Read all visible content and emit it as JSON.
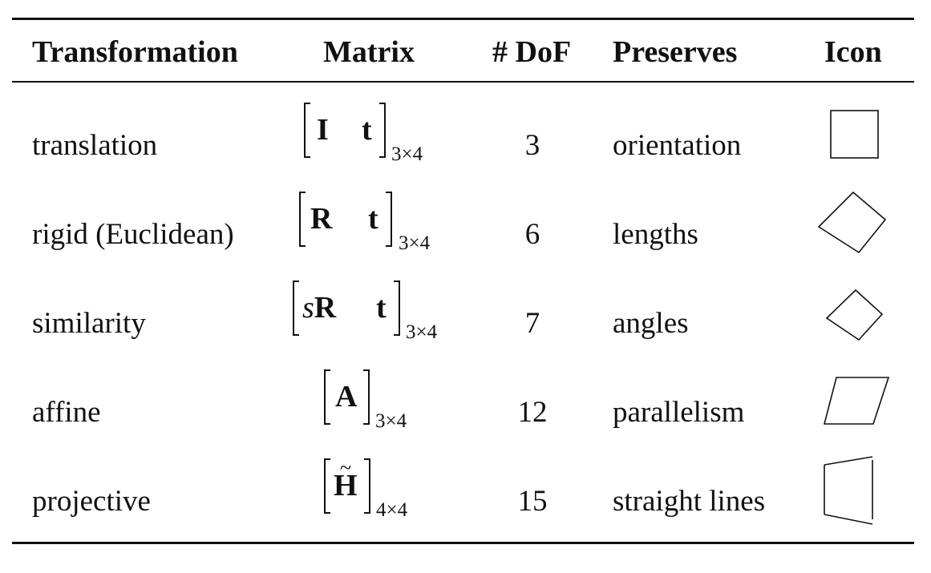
{
  "table": {
    "headers": {
      "transformation": "Transformation",
      "matrix": "Matrix",
      "dof": "# DoF",
      "preserves": "Preserves",
      "icon": "Icon"
    },
    "rows": [
      {
        "name": "translation",
        "matrix_entries": [
          "I",
          "t"
        ],
        "matrix_size": "3×4",
        "dof": "3",
        "preserves": "orientation",
        "icon": "square-icon"
      },
      {
        "name": "rigid (Euclidean)",
        "matrix_entries": [
          "R",
          "t"
        ],
        "matrix_size": "3×4",
        "dof": "6",
        "preserves": "lengths",
        "icon": "rotated-square-icon"
      },
      {
        "name": "similarity",
        "matrix_scale": "s",
        "matrix_entries": [
          "R",
          "t"
        ],
        "matrix_size": "3×4",
        "dof": "7",
        "preserves": "angles",
        "icon": "small-rotated-square-icon"
      },
      {
        "name": "affine",
        "matrix_entries": [
          "A"
        ],
        "matrix_size": "3×4",
        "dof": "12",
        "preserves": "parallelism",
        "icon": "parallelogram-icon"
      },
      {
        "name": "projective",
        "matrix_entries": [
          "H"
        ],
        "matrix_accent": "~",
        "matrix_size": "4×4",
        "dof": "15",
        "preserves": "straight lines",
        "icon": "trapezoid-icon"
      }
    ]
  }
}
